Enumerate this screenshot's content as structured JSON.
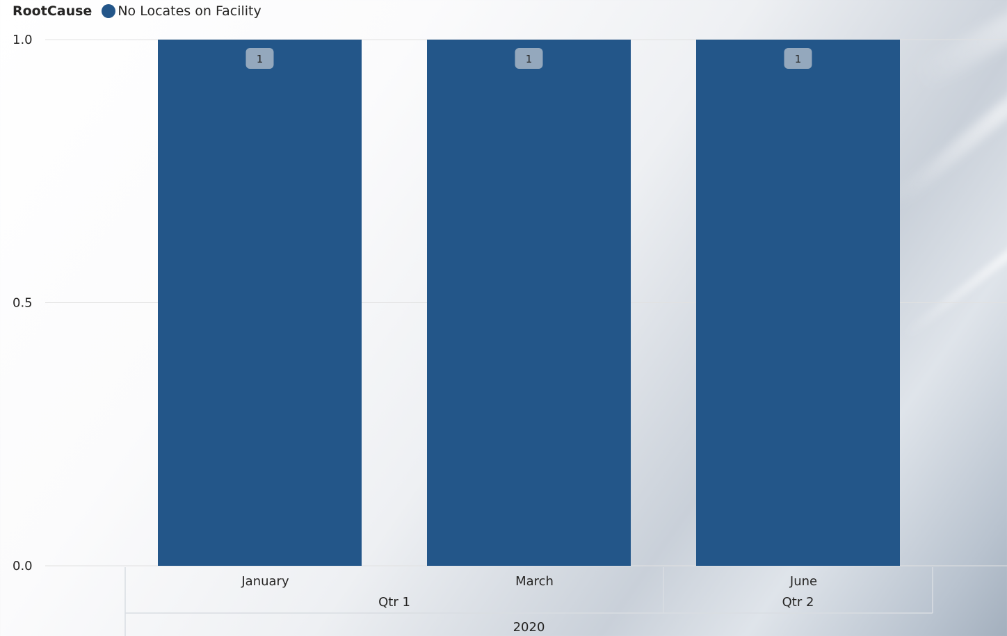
{
  "legend": {
    "title": "RootCause",
    "series_label": "No Locates on Facility"
  },
  "colors": {
    "bar": "#235689",
    "gridline": "#e1e1e1",
    "label_box": "#94a8bd",
    "hierarchy_line": "#d9dde2"
  },
  "chart_data": {
    "type": "bar",
    "categories": [
      "January",
      "March",
      "June"
    ],
    "quarters": [
      {
        "label": "Qtr 1",
        "months": [
          "January",
          "March"
        ]
      },
      {
        "label": "Qtr 2",
        "months": [
          "June"
        ]
      }
    ],
    "year": "2020",
    "series": [
      {
        "name": "No Locates on Facility",
        "values": [
          1,
          1,
          1
        ]
      }
    ],
    "data_labels": [
      "1",
      "1",
      "1"
    ],
    "y_ticks": [
      "0.0",
      "0.5",
      "1.0"
    ],
    "ylim": [
      0,
      1
    ],
    "grid": true,
    "legend_position": "top-left",
    "xlabel": "",
    "ylabel": ""
  }
}
